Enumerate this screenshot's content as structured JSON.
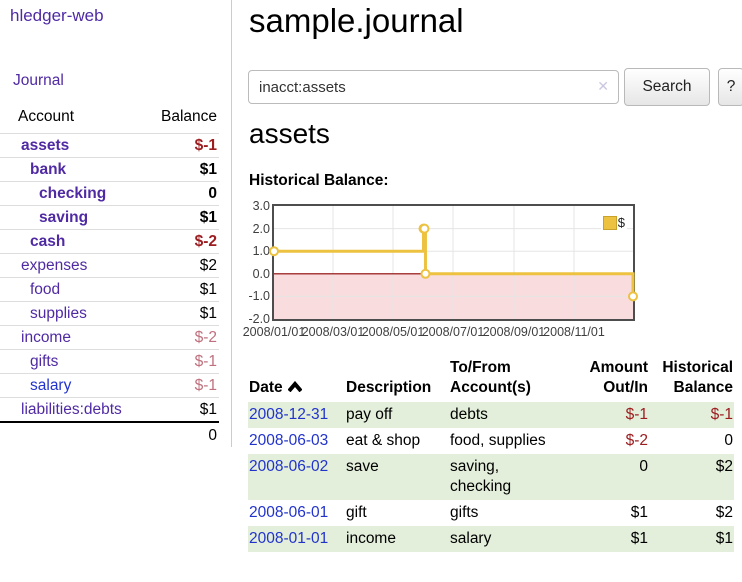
{
  "sidebar": {
    "app_title": "hledger-web",
    "journal_label": "Journal",
    "accounts_table": {
      "headers": {
        "account": "Account",
        "balance": "Balance"
      },
      "rows": [
        {
          "name": "assets",
          "balance": "$-1"
        },
        {
          "name": "bank",
          "balance": "$1"
        },
        {
          "name": "checking",
          "balance": "0"
        },
        {
          "name": "saving",
          "balance": "$1"
        },
        {
          "name": "cash",
          "balance": "$-2"
        },
        {
          "name": "expenses",
          "balance": "$2"
        },
        {
          "name": "food",
          "balance": "$1"
        },
        {
          "name": "supplies",
          "balance": "$1"
        },
        {
          "name": "income",
          "balance": "$-2"
        },
        {
          "name": "gifts",
          "balance": "$-1"
        },
        {
          "name": "salary",
          "balance": "$-1"
        },
        {
          "name": "liabilities:debts",
          "balance": "$1"
        }
      ],
      "total": "0"
    }
  },
  "main": {
    "title": "sample.journal",
    "search": {
      "value": "inacct:assets",
      "clear_icon": "✕",
      "search_label": "Search",
      "help_label": "?"
    },
    "account_heading": "assets",
    "register": {
      "headers": {
        "date": "Date",
        "description": "Description",
        "accounts": "To/From Account(s)",
        "amount": "Amount Out/In",
        "balance": "Historical Balance"
      },
      "rows": [
        {
          "date": "2008-12-31",
          "description": "pay off",
          "accounts": "debts",
          "amount": "$-1",
          "balance": "$-1"
        },
        {
          "date": "2008-06-03",
          "description": "eat & shop",
          "accounts": "food, supplies",
          "amount": "$-2",
          "balance": "0"
        },
        {
          "date": "2008-06-02",
          "description": "save",
          "accounts": "saving,\nchecking",
          "amount": "0",
          "balance": "$2"
        },
        {
          "date": "2008-06-01",
          "description": "gift",
          "accounts": "gifts",
          "amount": "$1",
          "balance": "$2"
        },
        {
          "date": "2008-01-01",
          "description": "income",
          "accounts": "salary",
          "amount": "$1",
          "balance": "$1"
        }
      ]
    }
  },
  "chart_data": {
    "type": "line",
    "step": true,
    "title": "Historical Balance:",
    "series": [
      {
        "name": "$",
        "color": "#edc240",
        "points": [
          [
            "2008-01-01",
            1
          ],
          [
            "2008-06-01",
            2
          ],
          [
            "2008-06-02",
            2
          ],
          [
            "2008-06-03",
            0
          ],
          [
            "2008-12-31",
            -1
          ]
        ]
      }
    ],
    "x_range": [
      "2008-01-01",
      "2008-12-31"
    ],
    "ylim": [
      -2,
      3
    ],
    "y_ticks": [
      3,
      2,
      1,
      0,
      -1,
      -2
    ],
    "x_ticks": [
      {
        "date": "2008-01-01",
        "label": "2008/01/01"
      },
      {
        "date": "2008-03-01",
        "label": "2008/03/01"
      },
      {
        "date": "2008-05-01",
        "label": "2008/05/01"
      },
      {
        "date": "2008-07-01",
        "label": "2008/07/01"
      },
      {
        "date": "2008-09-01",
        "label": "2008/09/01"
      },
      {
        "date": "2008-11-01",
        "label": "2008/11/01"
      }
    ],
    "legend": {
      "label": "$",
      "position": "top-right"
    },
    "grid": true,
    "colors": {
      "series": "#edc240",
      "marker_fill": "#ffffff",
      "negative_region": "#f9dcdd",
      "zero_line": "#8b0000",
      "gridline": "#e5e5e5",
      "plot_border": "#4d4d4d"
    }
  },
  "accent_colors": {
    "link_purple": "#4f2aa3",
    "link_blue": "#2233cc",
    "negative_strong": "#9d1c20",
    "negative_soft": "#c0707d",
    "row_stripe_green": "#e3efdb"
  }
}
